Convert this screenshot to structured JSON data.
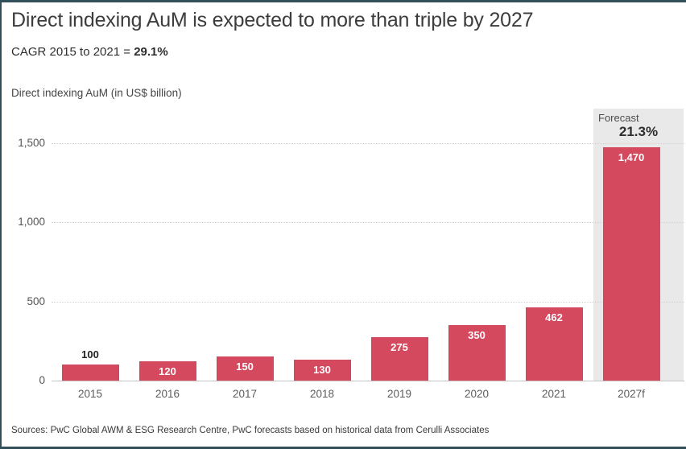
{
  "header": {
    "title": "Direct indexing AuM is expected to more than triple by 2027",
    "subtitle_prefix": "CAGR 2015 to 2021 = ",
    "subtitle_value": "29.1%"
  },
  "chart_data": {
    "type": "bar",
    "title": "Direct indexing AuM (in US$ billion)",
    "categories": [
      "2015",
      "2016",
      "2017",
      "2018",
      "2019",
      "2020",
      "2021",
      "2027f"
    ],
    "values": [
      100,
      120,
      150,
      130,
      275,
      350,
      462,
      1470
    ],
    "value_labels": [
      "100",
      "120",
      "150",
      "130",
      "275",
      "350",
      "462",
      "1,470"
    ],
    "label_positions": [
      "above",
      "inside",
      "inside",
      "inside",
      "inside",
      "inside",
      "inside",
      "inside"
    ],
    "ylim": [
      0,
      1500
    ],
    "yticks": [
      0,
      500,
      1000,
      1500
    ],
    "ytick_labels": [
      "0",
      "500",
      "1,000",
      "1,500"
    ],
    "grid": "horizontal dotted",
    "legend": "none",
    "bar_color": "#d5495f",
    "forecast": {
      "label": "Forecast",
      "cagr": "21.3%",
      "applies_to": "2027f",
      "band_color": "#e9e9e9"
    }
  },
  "footer": {
    "sources": "Sources: PwC Global AWM & ESG Research Centre, PwC forecasts based on historical data from Cerulli Associates"
  }
}
